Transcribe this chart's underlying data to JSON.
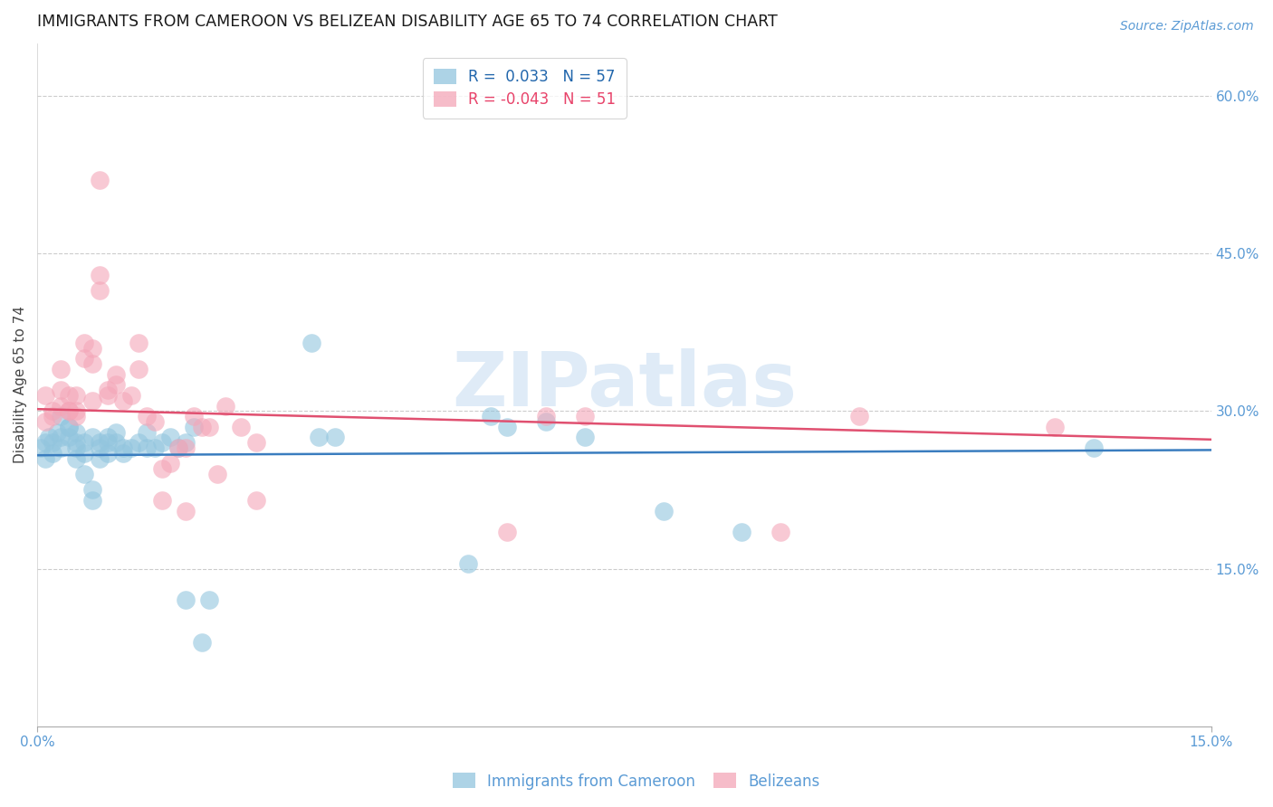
{
  "title": "IMMIGRANTS FROM CAMEROON VS BELIZEAN DISABILITY AGE 65 TO 74 CORRELATION CHART",
  "source": "Source: ZipAtlas.com",
  "ylabel": "Disability Age 65 to 74",
  "right_ytick_labels": [
    "60.0%",
    "45.0%",
    "30.0%",
    "15.0%"
  ],
  "right_ytick_values": [
    0.6,
    0.45,
    0.3,
    0.15
  ],
  "xlim": [
    0.0,
    0.15
  ],
  "ylim": [
    0.0,
    0.65
  ],
  "color_blue": "#92c5de",
  "color_pink": "#f4a6b8",
  "axis_color": "#5b9bd5",
  "watermark": "ZIPatlas",
  "blue_scatter": [
    [
      0.0005,
      0.265
    ],
    [
      0.001,
      0.255
    ],
    [
      0.001,
      0.27
    ],
    [
      0.0015,
      0.275
    ],
    [
      0.002,
      0.26
    ],
    [
      0.002,
      0.27
    ],
    [
      0.0025,
      0.28
    ],
    [
      0.003,
      0.265
    ],
    [
      0.003,
      0.275
    ],
    [
      0.003,
      0.295
    ],
    [
      0.004,
      0.285
    ],
    [
      0.004,
      0.275
    ],
    [
      0.004,
      0.285
    ],
    [
      0.005,
      0.27
    ],
    [
      0.005,
      0.265
    ],
    [
      0.005,
      0.255
    ],
    [
      0.005,
      0.28
    ],
    [
      0.006,
      0.26
    ],
    [
      0.006,
      0.24
    ],
    [
      0.006,
      0.27
    ],
    [
      0.007,
      0.225
    ],
    [
      0.007,
      0.215
    ],
    [
      0.007,
      0.275
    ],
    [
      0.008,
      0.27
    ],
    [
      0.008,
      0.265
    ],
    [
      0.008,
      0.255
    ],
    [
      0.009,
      0.26
    ],
    [
      0.009,
      0.27
    ],
    [
      0.009,
      0.275
    ],
    [
      0.01,
      0.28
    ],
    [
      0.01,
      0.27
    ],
    [
      0.011,
      0.265
    ],
    [
      0.011,
      0.26
    ],
    [
      0.012,
      0.265
    ],
    [
      0.013,
      0.27
    ],
    [
      0.014,
      0.265
    ],
    [
      0.014,
      0.28
    ],
    [
      0.015,
      0.265
    ],
    [
      0.016,
      0.27
    ],
    [
      0.017,
      0.275
    ],
    [
      0.018,
      0.265
    ],
    [
      0.019,
      0.12
    ],
    [
      0.019,
      0.27
    ],
    [
      0.02,
      0.285
    ],
    [
      0.021,
      0.08
    ],
    [
      0.022,
      0.12
    ],
    [
      0.035,
      0.365
    ],
    [
      0.036,
      0.275
    ],
    [
      0.038,
      0.275
    ],
    [
      0.055,
      0.155
    ],
    [
      0.058,
      0.295
    ],
    [
      0.06,
      0.285
    ],
    [
      0.065,
      0.29
    ],
    [
      0.07,
      0.275
    ],
    [
      0.08,
      0.205
    ],
    [
      0.09,
      0.185
    ],
    [
      0.135,
      0.265
    ]
  ],
  "pink_scatter": [
    [
      0.001,
      0.29
    ],
    [
      0.001,
      0.315
    ],
    [
      0.002,
      0.3
    ],
    [
      0.002,
      0.295
    ],
    [
      0.003,
      0.32
    ],
    [
      0.003,
      0.34
    ],
    [
      0.003,
      0.305
    ],
    [
      0.004,
      0.3
    ],
    [
      0.004,
      0.315
    ],
    [
      0.004,
      0.3
    ],
    [
      0.005,
      0.295
    ],
    [
      0.005,
      0.315
    ],
    [
      0.005,
      0.3
    ],
    [
      0.006,
      0.365
    ],
    [
      0.006,
      0.35
    ],
    [
      0.007,
      0.36
    ],
    [
      0.007,
      0.31
    ],
    [
      0.007,
      0.345
    ],
    [
      0.008,
      0.415
    ],
    [
      0.008,
      0.43
    ],
    [
      0.008,
      0.52
    ],
    [
      0.009,
      0.32
    ],
    [
      0.009,
      0.315
    ],
    [
      0.01,
      0.325
    ],
    [
      0.01,
      0.335
    ],
    [
      0.011,
      0.31
    ],
    [
      0.012,
      0.315
    ],
    [
      0.013,
      0.365
    ],
    [
      0.013,
      0.34
    ],
    [
      0.014,
      0.295
    ],
    [
      0.015,
      0.29
    ],
    [
      0.016,
      0.215
    ],
    [
      0.016,
      0.245
    ],
    [
      0.017,
      0.25
    ],
    [
      0.018,
      0.265
    ],
    [
      0.019,
      0.265
    ],
    [
      0.019,
      0.205
    ],
    [
      0.02,
      0.295
    ],
    [
      0.021,
      0.285
    ],
    [
      0.022,
      0.285
    ],
    [
      0.023,
      0.24
    ],
    [
      0.024,
      0.305
    ],
    [
      0.026,
      0.285
    ],
    [
      0.028,
      0.215
    ],
    [
      0.028,
      0.27
    ],
    [
      0.06,
      0.185
    ],
    [
      0.065,
      0.295
    ],
    [
      0.07,
      0.295
    ],
    [
      0.095,
      0.185
    ],
    [
      0.105,
      0.295
    ],
    [
      0.13,
      0.285
    ]
  ],
  "blue_line_x": [
    0.0,
    0.15
  ],
  "blue_line_y": [
    0.258,
    0.263
  ],
  "pink_line_x": [
    0.0,
    0.15
  ],
  "pink_line_y": [
    0.302,
    0.273
  ],
  "title_fontsize": 12.5,
  "label_fontsize": 11,
  "tick_fontsize": 11,
  "source_fontsize": 10,
  "watermark_fontsize": 60
}
